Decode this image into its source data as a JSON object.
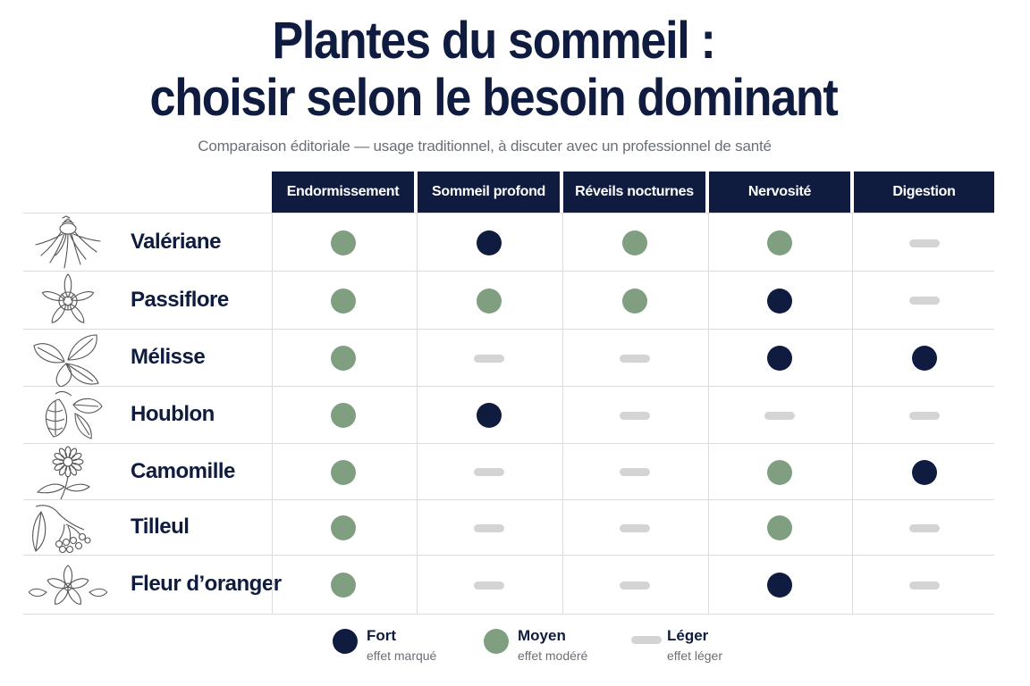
{
  "title_line1": "Plantes du sommeil :",
  "title_line2": "choisir selon le besoin dominant",
  "subtitle": "Comparaison éditoriale — usage traditionnel, à discuter avec un professionnel de santé",
  "columns": [
    "Endormissement",
    "Sommeil profond",
    "Réveils nocturnes",
    "Nervosité",
    "Digestion"
  ],
  "plants": [
    {
      "name": "Valériane",
      "icon": "valerian-root-icon",
      "levels": [
        "moyen",
        "fort",
        "moyen",
        "moyen",
        "leger"
      ]
    },
    {
      "name": "Passiflore",
      "icon": "passionflower-icon",
      "levels": [
        "moyen",
        "moyen",
        "moyen",
        "fort",
        "leger"
      ]
    },
    {
      "name": "Mélisse",
      "icon": "lemon-balm-leaf-icon",
      "levels": [
        "moyen",
        "leger",
        "leger",
        "fort",
        "fort"
      ]
    },
    {
      "name": "Houblon",
      "icon": "hop-cone-icon",
      "levels": [
        "moyen",
        "fort",
        "leger",
        "leger",
        "leger"
      ]
    },
    {
      "name": "Camomille",
      "icon": "chamomile-flower-icon",
      "levels": [
        "moyen",
        "leger",
        "leger",
        "moyen",
        "fort"
      ]
    },
    {
      "name": "Tilleul",
      "icon": "linden-branch-icon",
      "levels": [
        "moyen",
        "leger",
        "leger",
        "moyen",
        "leger"
      ]
    },
    {
      "name": "Fleur d’oranger",
      "icon": "orange-blossom-icon",
      "levels": [
        "moyen",
        "leger",
        "leger",
        "fort",
        "leger"
      ]
    }
  ],
  "legend": [
    {
      "key": "fort",
      "label": "Fort",
      "desc": "effet marqué"
    },
    {
      "key": "moyen",
      "label": "Moyen",
      "desc": "effet modéré"
    },
    {
      "key": "leger",
      "label": "Léger",
      "desc": "effet léger"
    }
  ],
  "colors": {
    "navy": "#0f1c3f",
    "sage": "#7f9f80",
    "light_gray": "#d3d4d6",
    "grid": "#d9dbde"
  }
}
